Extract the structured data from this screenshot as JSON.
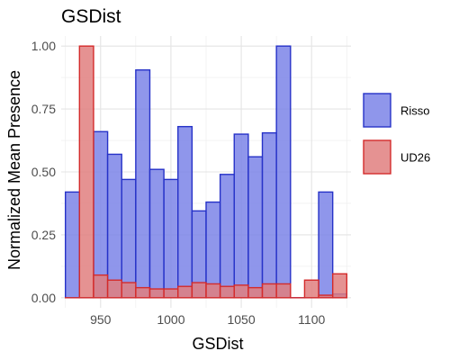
{
  "chart_data": {
    "type": "bar",
    "title": "GSDist",
    "xlabel": "GSDist",
    "ylabel": "Normalized Mean Presence",
    "xlim": [
      922,
      1128
    ],
    "ylim": [
      -0.04,
      1.04
    ],
    "x_ticks": [
      950,
      1000,
      1050,
      1100
    ],
    "y_ticks": [
      0.0,
      0.25,
      0.5,
      0.75,
      1.0
    ],
    "x_tick_labels": [
      "950",
      "1000",
      "1050",
      "1100"
    ],
    "y_tick_labels": [
      "0.00",
      "0.25",
      "0.50",
      "0.75",
      "1.00"
    ],
    "bin_width": 10,
    "x": [
      930,
      940,
      950,
      960,
      970,
      980,
      990,
      1000,
      1010,
      1020,
      1030,
      1040,
      1050,
      1060,
      1070,
      1080,
      1090,
      1100,
      1110,
      1120
    ],
    "series": [
      {
        "name": "Risso",
        "fill": "#7b84e8",
        "stroke": "#2632c8",
        "values": [
          0.42,
          0.0,
          0.66,
          0.57,
          0.47,
          0.905,
          0.51,
          0.47,
          0.68,
          0.345,
          0.38,
          0.49,
          0.65,
          0.56,
          0.655,
          1.0,
          0.0,
          0.0,
          0.42,
          0.015
        ]
      },
      {
        "name": "UD26",
        "fill": "#e07f7f",
        "stroke": "#d42b2b",
        "values": [
          0.0,
          1.0,
          0.09,
          0.07,
          0.06,
          0.04,
          0.035,
          0.035,
          0.045,
          0.06,
          0.055,
          0.045,
          0.05,
          0.04,
          0.055,
          0.055,
          0.0,
          0.07,
          0.01,
          0.095
        ]
      }
    ],
    "grid": true,
    "legend_position": "right"
  }
}
